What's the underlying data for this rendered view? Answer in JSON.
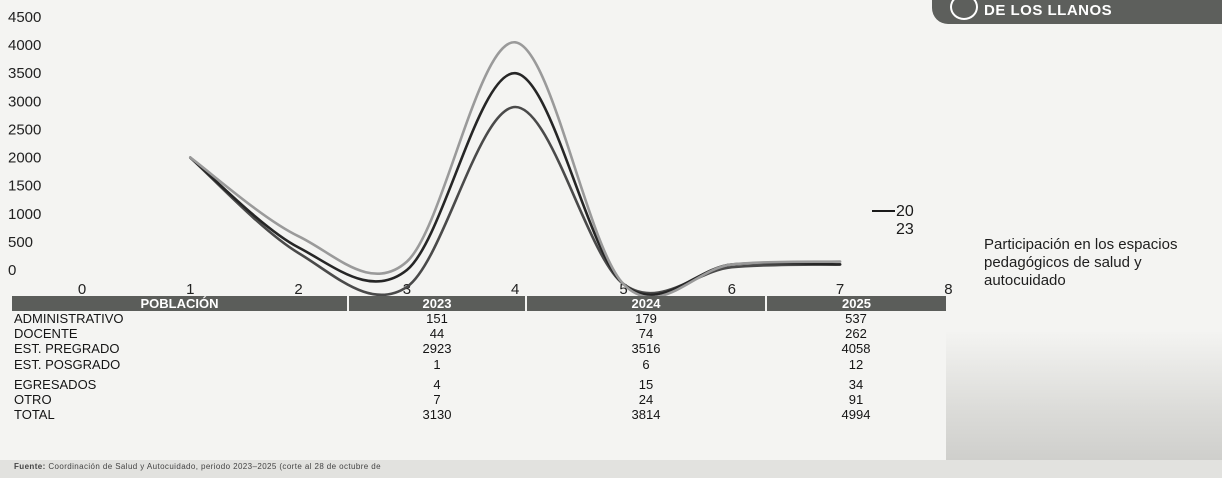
{
  "brand": {
    "logo_text": "DE LOS LLANOS"
  },
  "chart_data": {
    "type": "line",
    "title": "",
    "xlabel": "",
    "ylabel": "",
    "xlim": [
      0,
      8
    ],
    "ylim": [
      -500,
      4500
    ],
    "x_ticks": [
      "0",
      "1",
      "2",
      "3",
      "4",
      "5",
      "6",
      "7",
      "8"
    ],
    "y_ticks": [
      "4500",
      "4000",
      "3500",
      "3000",
      "2500",
      "2000",
      "1500",
      "1000",
      "500",
      "0"
    ],
    "x": [
      1,
      2,
      3,
      4,
      5,
      6,
      7
    ],
    "series": [
      {
        "name": "",
        "color": "#4a4a4a",
        "values": [
          2000,
          300,
          -300,
          2900,
          -250,
          50,
          100
        ]
      },
      {
        "name": "",
        "color": "#262626",
        "values": [
          2000,
          400,
          0,
          3500,
          -250,
          100,
          100
        ]
      },
      {
        "name": "",
        "color": "#9a9a9a",
        "values": [
          2000,
          600,
          150,
          4050,
          -250,
          100,
          150
        ]
      }
    ],
    "legend": {
      "line1": "20",
      "line2": "23",
      "color": "#1a1a1a",
      "placement": "right"
    },
    "grid": false
  },
  "side_caption": "Participación en los espacios pedagógicos de salud y autocuidado",
  "table": {
    "headers": [
      "POBLACIÓN",
      "2023",
      "2024",
      "2025"
    ],
    "rows": [
      {
        "label": "ADMINISTRATIVO",
        "values": [
          "151",
          "179",
          "537"
        ]
      },
      {
        "label": "DOCENTE",
        "values": [
          "44",
          "74",
          "262"
        ]
      },
      {
        "label": "EST. PREGRADO",
        "values": [
          "2923",
          "3516",
          "4058"
        ]
      },
      {
        "label": "EST. POSGRADO",
        "values": [
          "1",
          "6",
          "12"
        ]
      },
      {
        "label": "EGRESADOS",
        "values": [
          "4",
          "15",
          "34"
        ]
      },
      {
        "label": "OTRO",
        "values": [
          "7",
          "24",
          "91"
        ]
      },
      {
        "label": "TOTAL",
        "values": [
          "3130",
          "3814",
          "4994"
        ]
      }
    ]
  },
  "source": {
    "label": "Fuente:",
    "text": "Coordinación de Salud y Autocuidado, periodo 2023–2025 (corte al 28 de octubre de"
  }
}
